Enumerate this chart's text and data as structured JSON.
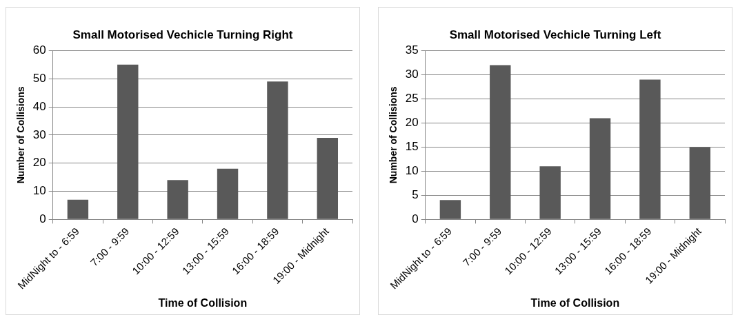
{
  "chart_data": [
    {
      "type": "bar",
      "title": "Small Motorised Vechicle Turning Right",
      "xlabel": "Time of Collision",
      "ylabel": "Number of Collisions",
      "categories": [
        "MidNight to - 6:59",
        "7:00 - 9:59",
        "10:00 - 12:59",
        "13:00 - 15:59",
        "16:00 - 18:59",
        "19:00 - Midnight"
      ],
      "values": [
        7,
        55,
        14,
        18,
        49,
        29
      ],
      "color": "#595959",
      "ylim": [
        0,
        60
      ],
      "yticks": [
        0,
        10,
        20,
        30,
        40,
        50,
        60
      ],
      "grid": "y",
      "legend": false
    },
    {
      "type": "bar",
      "title": "Small Motorised Vechicle Turning Left",
      "xlabel": "Time of Collision",
      "ylabel": "Number of Collisions",
      "categories": [
        "MidNight to - 6:59",
        "7:00 - 9:59",
        "10:00 - 12:59",
        "13:00 - 15:59",
        "16:00 - 18:59",
        "19:00 - Midnight"
      ],
      "values": [
        4,
        32,
        11,
        21,
        29,
        15
      ],
      "color": "#595959",
      "ylim": [
        0,
        35
      ],
      "yticks": [
        0,
        5,
        10,
        15,
        20,
        25,
        30,
        35
      ],
      "grid": "y",
      "legend": false
    }
  ]
}
